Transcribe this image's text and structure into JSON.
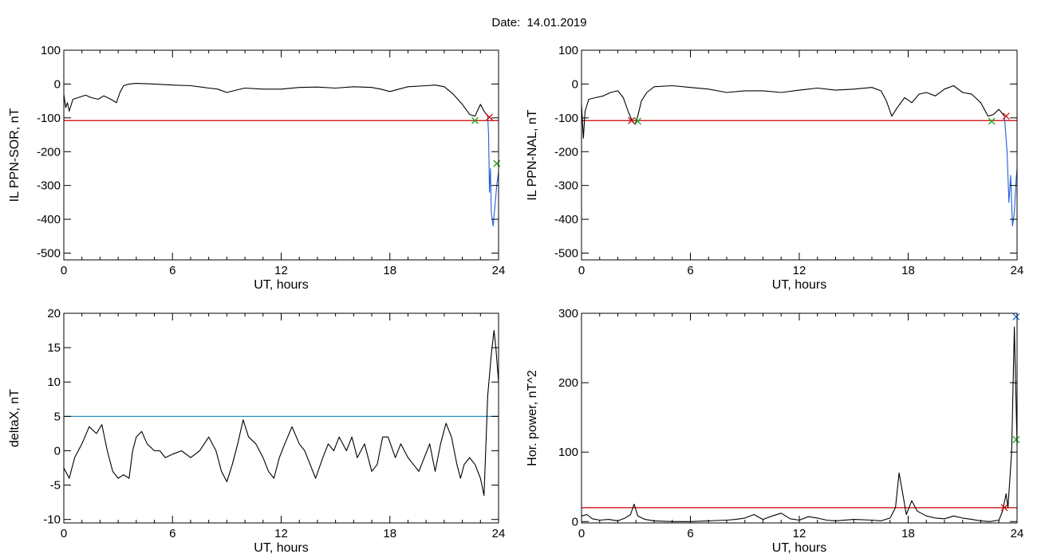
{
  "figure": {
    "title": "Date:  14.01.2019"
  },
  "colors": {
    "trace": "#000000",
    "threshold_red": "#cc0000",
    "threshold_blue": "#2a8fbd",
    "event_blue": "#1f5fd6",
    "marker_green": "#1aa31a",
    "marker_red": "#d01010",
    "marker_blue": "#2a6fd6"
  },
  "chart_data": [
    {
      "id": "il-sor",
      "type": "line",
      "xlabel": "UT, hours",
      "ylabel": "IL PPN-SOR, nT",
      "xlim": [
        0,
        24
      ],
      "ylim": [
        -520,
        100
      ],
      "xticks": [
        0,
        6,
        12,
        18,
        24
      ],
      "yticks": [
        100,
        0,
        -100,
        -200,
        -300,
        -400,
        -500
      ],
      "grid": false,
      "threshold": {
        "y": -108,
        "color": "threshold_red"
      },
      "series": [
        {
          "color": "trace",
          "points": [
            [
              0,
              -30
            ],
            [
              0.1,
              -70
            ],
            [
              0.2,
              -55
            ],
            [
              0.3,
              -80
            ],
            [
              0.5,
              -45
            ],
            [
              0.8,
              -40
            ],
            [
              1.2,
              -33
            ],
            [
              1.5,
              -40
            ],
            [
              1.9,
              -45
            ],
            [
              2.2,
              -35
            ],
            [
              2.6,
              -45
            ],
            [
              2.9,
              -55
            ],
            [
              3.1,
              -25
            ],
            [
              3.3,
              -5
            ],
            [
              3.6,
              0
            ],
            [
              4,
              2
            ],
            [
              5,
              0
            ],
            [
              6,
              -3
            ],
            [
              7,
              -5
            ],
            [
              8,
              -12
            ],
            [
              8.5,
              -15
            ],
            [
              9,
              -25
            ],
            [
              9.5,
              -18
            ],
            [
              10,
              -12
            ],
            [
              11,
              -15
            ],
            [
              12,
              -15
            ],
            [
              13,
              -10
            ],
            [
              14,
              -9
            ],
            [
              15,
              -12
            ],
            [
              16,
              -8
            ],
            [
              17,
              -10
            ],
            [
              17.5,
              -15
            ],
            [
              18,
              -22
            ],
            [
              18.5,
              -15
            ],
            [
              19,
              -8
            ],
            [
              20,
              -5
            ],
            [
              20.5,
              -3
            ],
            [
              21,
              -8
            ],
            [
              21.5,
              -30
            ],
            [
              22,
              -60
            ],
            [
              22.4,
              -90
            ],
            [
              22.7,
              -95
            ],
            [
              23,
              -60
            ],
            [
              23.2,
              -80
            ],
            [
              23.4,
              -95
            ]
          ]
        },
        {
          "color": "event_blue",
          "points": [
            [
              23.4,
              -95
            ],
            [
              23.45,
              -150
            ],
            [
              23.5,
              -320
            ],
            [
              23.55,
              -250
            ],
            [
              23.6,
              -380
            ],
            [
              23.7,
              -420
            ],
            [
              23.8,
              -360
            ],
            [
              23.9,
              -300
            ],
            [
              24,
              -260
            ]
          ]
        }
      ],
      "markers": [
        {
          "x": 22.7,
          "y": -108,
          "symbol": "x",
          "color": "marker_green"
        },
        {
          "x": 23.5,
          "y": -98,
          "symbol": "x",
          "color": "marker_red"
        },
        {
          "x": 23.9,
          "y": -235,
          "symbol": "x",
          "color": "marker_green"
        }
      ]
    },
    {
      "id": "il-nal",
      "type": "line",
      "xlabel": "UT, hours",
      "ylabel": "IL PPN-NAL, nT",
      "xlim": [
        0,
        24
      ],
      "ylim": [
        -520,
        100
      ],
      "xticks": [
        0,
        6,
        12,
        18,
        24
      ],
      "yticks": [
        100,
        0,
        -100,
        -200,
        -300,
        -400,
        -500
      ],
      "grid": false,
      "threshold": {
        "y": -108,
        "color": "threshold_red"
      },
      "series": [
        {
          "color": "trace",
          "points": [
            [
              0,
              -60
            ],
            [
              0.1,
              -160
            ],
            [
              0.2,
              -80
            ],
            [
              0.4,
              -45
            ],
            [
              0.8,
              -40
            ],
            [
              1.2,
              -35
            ],
            [
              1.6,
              -25
            ],
            [
              2,
              -20
            ],
            [
              2.3,
              -40
            ],
            [
              2.6,
              -85
            ],
            [
              2.8,
              -110
            ],
            [
              2.95,
              -120
            ],
            [
              3.1,
              -95
            ],
            [
              3.3,
              -50
            ],
            [
              3.6,
              -25
            ],
            [
              4,
              -8
            ],
            [
              5,
              -5
            ],
            [
              6,
              -10
            ],
            [
              7,
              -15
            ],
            [
              8,
              -25
            ],
            [
              9,
              -20
            ],
            [
              10,
              -20
            ],
            [
              11,
              -25
            ],
            [
              12,
              -18
            ],
            [
              13,
              -12
            ],
            [
              14,
              -18
            ],
            [
              15,
              -15
            ],
            [
              16,
              -10
            ],
            [
              16.5,
              -20
            ],
            [
              16.8,
              -50
            ],
            [
              17.1,
              -95
            ],
            [
              17.4,
              -70
            ],
            [
              17.8,
              -40
            ],
            [
              18.2,
              -55
            ],
            [
              18.6,
              -30
            ],
            [
              19,
              -25
            ],
            [
              19.5,
              -35
            ],
            [
              20,
              -15
            ],
            [
              20.5,
              -5
            ],
            [
              21,
              -25
            ],
            [
              21.5,
              -30
            ],
            [
              22,
              -55
            ],
            [
              22.4,
              -95
            ],
            [
              22.7,
              -90
            ],
            [
              23,
              -75
            ],
            [
              23.3,
              -95
            ]
          ]
        },
        {
          "color": "event_blue",
          "points": [
            [
              23.3,
              -95
            ],
            [
              23.45,
              -200
            ],
            [
              23.55,
              -350
            ],
            [
              23.65,
              -270
            ],
            [
              23.75,
              -420
            ],
            [
              23.85,
              -380
            ],
            [
              23.95,
              -280
            ],
            [
              24,
              -250
            ]
          ]
        }
      ],
      "markers": [
        {
          "x": 2.75,
          "y": -108,
          "symbol": "x",
          "color": "marker_red"
        },
        {
          "x": 3.1,
          "y": -110,
          "symbol": "x",
          "color": "marker_green"
        },
        {
          "x": 22.6,
          "y": -110,
          "symbol": "x",
          "color": "marker_green"
        },
        {
          "x": 23.4,
          "y": -95,
          "symbol": "x",
          "color": "marker_red"
        }
      ]
    },
    {
      "id": "deltax",
      "type": "line",
      "xlabel": "UT, hours",
      "ylabel": "deltaX, nT",
      "xlim": [
        0,
        24
      ],
      "ylim": [
        -10.5,
        20
      ],
      "xticks": [
        0,
        6,
        12,
        18,
        24
      ],
      "yticks": [
        20,
        15,
        10,
        5,
        0,
        -5,
        -10
      ],
      "grid": false,
      "threshold": {
        "y": 5,
        "color": "threshold_blue"
      },
      "series": [
        {
          "color": "trace",
          "points": [
            [
              0,
              -2.5
            ],
            [
              0.3,
              -4
            ],
            [
              0.6,
              -1
            ],
            [
              1,
              1
            ],
            [
              1.4,
              3.5
            ],
            [
              1.8,
              2.5
            ],
            [
              2.1,
              3.8
            ],
            [
              2.4,
              0
            ],
            [
              2.7,
              -3
            ],
            [
              3,
              -4
            ],
            [
              3.3,
              -3.5
            ],
            [
              3.6,
              -4
            ],
            [
              3.8,
              0
            ],
            [
              4,
              2
            ],
            [
              4.3,
              2.8
            ],
            [
              4.6,
              1
            ],
            [
              5,
              0
            ],
            [
              5.3,
              0
            ],
            [
              5.6,
              -1
            ],
            [
              6,
              -0.5
            ],
            [
              6.5,
              0
            ],
            [
              7,
              -1
            ],
            [
              7.5,
              0
            ],
            [
              8,
              2
            ],
            [
              8.4,
              0
            ],
            [
              8.7,
              -3
            ],
            [
              9,
              -4.5
            ],
            [
              9.3,
              -2
            ],
            [
              9.6,
              1
            ],
            [
              9.9,
              4.5
            ],
            [
              10.2,
              2
            ],
            [
              10.6,
              1
            ],
            [
              11,
              -1
            ],
            [
              11.3,
              -3
            ],
            [
              11.6,
              -4
            ],
            [
              11.9,
              -1
            ],
            [
              12.2,
              1
            ],
            [
              12.6,
              3.5
            ],
            [
              13,
              1
            ],
            [
              13.3,
              0
            ],
            [
              13.6,
              -2
            ],
            [
              13.9,
              -4
            ],
            [
              14.3,
              -1
            ],
            [
              14.6,
              1
            ],
            [
              14.9,
              0
            ],
            [
              15.2,
              2
            ],
            [
              15.6,
              0
            ],
            [
              15.9,
              2
            ],
            [
              16.2,
              -1
            ],
            [
              16.6,
              1
            ],
            [
              17,
              -3
            ],
            [
              17.3,
              -2
            ],
            [
              17.6,
              2
            ],
            [
              17.9,
              2
            ],
            [
              18.3,
              -1
            ],
            [
              18.6,
              1
            ],
            [
              19,
              -1
            ],
            [
              19.3,
              -2
            ],
            [
              19.6,
              -3
            ],
            [
              19.9,
              -1
            ],
            [
              20.2,
              1
            ],
            [
              20.5,
              -3
            ],
            [
              20.8,
              1
            ],
            [
              21.1,
              4
            ],
            [
              21.4,
              2
            ],
            [
              21.7,
              -2
            ],
            [
              21.9,
              -4
            ],
            [
              22.1,
              -2
            ],
            [
              22.4,
              -1
            ],
            [
              22.7,
              -2
            ],
            [
              23,
              -4
            ],
            [
              23.2,
              -6.5
            ],
            [
              23.4,
              8
            ],
            [
              23.6,
              14
            ],
            [
              23.75,
              17.5
            ],
            [
              23.85,
              15
            ],
            [
              24,
              10
            ]
          ]
        }
      ],
      "markers": []
    },
    {
      "id": "hor-power",
      "type": "line",
      "xlabel": "UT, hours",
      "ylabel": "Hor. power, nT^2",
      "xlim": [
        0,
        24
      ],
      "ylim": [
        -2,
        300
      ],
      "xticks": [
        0,
        6,
        12,
        18,
        24
      ],
      "yticks": [
        300,
        200,
        100,
        0
      ],
      "grid": false,
      "threshold": {
        "y": 20,
        "color": "threshold_red"
      },
      "series": [
        {
          "color": "trace",
          "points": [
            [
              0,
              8
            ],
            [
              0.3,
              10
            ],
            [
              0.6,
              4
            ],
            [
              1,
              2
            ],
            [
              1.5,
              3
            ],
            [
              2,
              1
            ],
            [
              2.4,
              5
            ],
            [
              2.7,
              10
            ],
            [
              2.9,
              25
            ],
            [
              3.1,
              8
            ],
            [
              3.5,
              3
            ],
            [
              4,
              1
            ],
            [
              5,
              0
            ],
            [
              6,
              0
            ],
            [
              7,
              1
            ],
            [
              8,
              2
            ],
            [
              8.5,
              3
            ],
            [
              9,
              5
            ],
            [
              9.5,
              10
            ],
            [
              10,
              3
            ],
            [
              10.5,
              8
            ],
            [
              11,
              12
            ],
            [
              11.5,
              4
            ],
            [
              12,
              2
            ],
            [
              12.5,
              7
            ],
            [
              13,
              5
            ],
            [
              13.5,
              2
            ],
            [
              14,
              1
            ],
            [
              15,
              3
            ],
            [
              16,
              2
            ],
            [
              16.5,
              1
            ],
            [
              17,
              5
            ],
            [
              17.3,
              20
            ],
            [
              17.5,
              70
            ],
            [
              17.7,
              40
            ],
            [
              17.9,
              10
            ],
            [
              18.2,
              30
            ],
            [
              18.5,
              15
            ],
            [
              19,
              8
            ],
            [
              19.5,
              5
            ],
            [
              20,
              4
            ],
            [
              20.5,
              8
            ],
            [
              21,
              5
            ],
            [
              21.5,
              3
            ],
            [
              22,
              1
            ],
            [
              22.5,
              0
            ],
            [
              23,
              2
            ],
            [
              23.2,
              15
            ],
            [
              23.4,
              40
            ],
            [
              23.5,
              20
            ],
            [
              23.7,
              100
            ],
            [
              23.85,
              280
            ],
            [
              24,
              110
            ]
          ]
        }
      ],
      "markers": [
        {
          "x": 23.3,
          "y": 20,
          "symbol": "x",
          "color": "marker_red"
        },
        {
          "x": 23.95,
          "y": 295,
          "symbol": "x",
          "color": "marker_blue"
        },
        {
          "x": 23.95,
          "y": 118,
          "symbol": "x",
          "color": "marker_green"
        }
      ]
    }
  ]
}
